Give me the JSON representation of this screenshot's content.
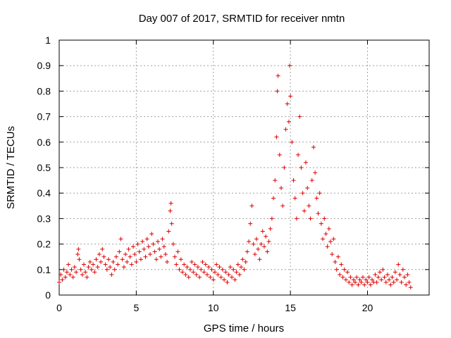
{
  "chart_data": {
    "type": "scatter",
    "title": "Day 007 of 2017, SRMTID for receiver nmtn",
    "xlabel": "GPS time / hours",
    "ylabel": "SRMTID / TECUs",
    "xlim": [
      0,
      24
    ],
    "ylim": [
      0,
      1
    ],
    "x_ticks": [
      0,
      5,
      10,
      15,
      20
    ],
    "x_tick_labels": [
      "0",
      "5",
      "10",
      "15",
      "20"
    ],
    "y_ticks": [
      0,
      0.1,
      0.2,
      0.3,
      0.4,
      0.5,
      0.6,
      0.7,
      0.8,
      0.9,
      1
    ],
    "y_tick_labels": [
      "0",
      "0.1",
      "0.2",
      "0.3",
      "0.4",
      "0.5",
      "0.6",
      "0.7",
      "0.8",
      "0.9",
      "1"
    ],
    "grid": true,
    "marker": "+",
    "color": "#e00000",
    "series": [
      {
        "name": "SRMTID",
        "points": [
          [
            0.0,
            0.05
          ],
          [
            0.1,
            0.08
          ],
          [
            0.2,
            0.06
          ],
          [
            0.3,
            0.1
          ],
          [
            0.4,
            0.07
          ],
          [
            0.5,
            0.09
          ],
          [
            0.6,
            0.12
          ],
          [
            0.7,
            0.08
          ],
          [
            0.8,
            0.1
          ],
          [
            0.9,
            0.07
          ],
          [
            1.0,
            0.11
          ],
          [
            1.1,
            0.09
          ],
          [
            1.2,
            0.16
          ],
          [
            1.25,
            0.18
          ],
          [
            1.3,
            0.14
          ],
          [
            1.4,
            0.1
          ],
          [
            1.5,
            0.08
          ],
          [
            1.6,
            0.12
          ],
          [
            1.7,
            0.09
          ],
          [
            1.8,
            0.07
          ],
          [
            1.9,
            0.11
          ],
          [
            2.0,
            0.13
          ],
          [
            2.1,
            0.1
          ],
          [
            2.2,
            0.12
          ],
          [
            2.3,
            0.09
          ],
          [
            2.4,
            0.14
          ],
          [
            2.5,
            0.11
          ],
          [
            2.6,
            0.16
          ],
          [
            2.7,
            0.13
          ],
          [
            2.8,
            0.18
          ],
          [
            2.9,
            0.15
          ],
          [
            3.0,
            0.12
          ],
          [
            3.1,
            0.1
          ],
          [
            3.2,
            0.14
          ],
          [
            3.3,
            0.11
          ],
          [
            3.4,
            0.08
          ],
          [
            3.5,
            0.13
          ],
          [
            3.6,
            0.1
          ],
          [
            3.7,
            0.15
          ],
          [
            3.8,
            0.12
          ],
          [
            3.9,
            0.17
          ],
          [
            4.0,
            0.22
          ],
          [
            4.1,
            0.14
          ],
          [
            4.2,
            0.11
          ],
          [
            4.3,
            0.16
          ],
          [
            4.4,
            0.13
          ],
          [
            4.5,
            0.18
          ],
          [
            4.6,
            0.15
          ],
          [
            4.7,
            0.12
          ],
          [
            4.8,
            0.19
          ],
          [
            4.9,
            0.16
          ],
          [
            5.0,
            0.13
          ],
          [
            5.1,
            0.2
          ],
          [
            5.2,
            0.17
          ],
          [
            5.3,
            0.14
          ],
          [
            5.4,
            0.21
          ],
          [
            5.5,
            0.18
          ],
          [
            5.6,
            0.15
          ],
          [
            5.7,
            0.22
          ],
          [
            5.8,
            0.19
          ],
          [
            5.9,
            0.16
          ],
          [
            6.0,
            0.24
          ],
          [
            6.1,
            0.2
          ],
          [
            6.2,
            0.17
          ],
          [
            6.3,
            0.14
          ],
          [
            6.4,
            0.21
          ],
          [
            6.5,
            0.18
          ],
          [
            6.6,
            0.15
          ],
          [
            6.7,
            0.22
          ],
          [
            6.8,
            0.19
          ],
          [
            6.9,
            0.16
          ],
          [
            7.0,
            0.13
          ],
          [
            7.1,
            0.25
          ],
          [
            7.2,
            0.33
          ],
          [
            7.25,
            0.36
          ],
          [
            7.3,
            0.28
          ],
          [
            7.4,
            0.2
          ],
          [
            7.5,
            0.15
          ],
          [
            7.6,
            0.12
          ],
          [
            7.7,
            0.17
          ],
          [
            7.8,
            0.1
          ],
          [
            7.9,
            0.14
          ],
          [
            8.0,
            0.09
          ],
          [
            8.1,
            0.12
          ],
          [
            8.2,
            0.08
          ],
          [
            8.3,
            0.11
          ],
          [
            8.4,
            0.07
          ],
          [
            8.5,
            0.1
          ],
          [
            8.6,
            0.13
          ],
          [
            8.7,
            0.09
          ],
          [
            8.8,
            0.12
          ],
          [
            8.9,
            0.08
          ],
          [
            9.0,
            0.11
          ],
          [
            9.1,
            0.07
          ],
          [
            9.2,
            0.1
          ],
          [
            9.3,
            0.13
          ],
          [
            9.4,
            0.09
          ],
          [
            9.5,
            0.12
          ],
          [
            9.6,
            0.08
          ],
          [
            9.7,
            0.11
          ],
          [
            9.8,
            0.07
          ],
          [
            9.9,
            0.1
          ],
          [
            10.0,
            0.06
          ],
          [
            10.1,
            0.09
          ],
          [
            10.2,
            0.12
          ],
          [
            10.3,
            0.08
          ],
          [
            10.4,
            0.11
          ],
          [
            10.5,
            0.07
          ],
          [
            10.6,
            0.1
          ],
          [
            10.7,
            0.06
          ],
          [
            10.8,
            0.09
          ],
          [
            10.9,
            0.05
          ],
          [
            11.0,
            0.08
          ],
          [
            11.1,
            0.11
          ],
          [
            11.2,
            0.07
          ],
          [
            11.3,
            0.1
          ],
          [
            11.4,
            0.06
          ],
          [
            11.5,
            0.09
          ],
          [
            11.6,
            0.12
          ],
          [
            11.7,
            0.08
          ],
          [
            11.8,
            0.11
          ],
          [
            11.9,
            0.14
          ],
          [
            12.0,
            0.1
          ],
          [
            12.1,
            0.13
          ],
          [
            12.2,
            0.17
          ],
          [
            12.3,
            0.21
          ],
          [
            12.4,
            0.28
          ],
          [
            12.5,
            0.35
          ],
          [
            12.6,
            0.2
          ],
          [
            12.7,
            0.16
          ],
          [
            12.8,
            0.22
          ],
          [
            12.9,
            0.18
          ],
          [
            13.0,
            0.14
          ],
          [
            13.1,
            0.2
          ],
          [
            13.2,
            0.25
          ],
          [
            13.3,
            0.19
          ],
          [
            13.4,
            0.23
          ],
          [
            13.5,
            0.17
          ],
          [
            13.6,
            0.21
          ],
          [
            13.7,
            0.26
          ],
          [
            13.8,
            0.3
          ],
          [
            13.9,
            0.38
          ],
          [
            14.0,
            0.45
          ],
          [
            14.1,
            0.62
          ],
          [
            14.15,
            0.8
          ],
          [
            14.2,
            0.86
          ],
          [
            14.3,
            0.55
          ],
          [
            14.4,
            0.42
          ],
          [
            14.5,
            0.35
          ],
          [
            14.6,
            0.5
          ],
          [
            14.7,
            0.65
          ],
          [
            14.8,
            0.75
          ],
          [
            14.9,
            0.68
          ],
          [
            14.95,
            0.9
          ],
          [
            15.0,
            0.78
          ],
          [
            15.1,
            0.6
          ],
          [
            15.2,
            0.45
          ],
          [
            15.3,
            0.38
          ],
          [
            15.4,
            0.3
          ],
          [
            15.5,
            0.55
          ],
          [
            15.6,
            0.7
          ],
          [
            15.7,
            0.5
          ],
          [
            15.8,
            0.4
          ],
          [
            15.9,
            0.33
          ],
          [
            16.0,
            0.52
          ],
          [
            16.1,
            0.42
          ],
          [
            16.2,
            0.35
          ],
          [
            16.3,
            0.3
          ],
          [
            16.4,
            0.45
          ],
          [
            16.5,
            0.58
          ],
          [
            16.6,
            0.48
          ],
          [
            16.7,
            0.38
          ],
          [
            16.8,
            0.32
          ],
          [
            16.9,
            0.4
          ],
          [
            17.0,
            0.28
          ],
          [
            17.1,
            0.22
          ],
          [
            17.2,
            0.3
          ],
          [
            17.3,
            0.24
          ],
          [
            17.4,
            0.19
          ],
          [
            17.5,
            0.26
          ],
          [
            17.6,
            0.21
          ],
          [
            17.7,
            0.16
          ],
          [
            17.8,
            0.22
          ],
          [
            17.9,
            0.13
          ],
          [
            18.0,
            0.1
          ],
          [
            18.1,
            0.15
          ],
          [
            18.2,
            0.08
          ],
          [
            18.3,
            0.12
          ],
          [
            18.4,
            0.07
          ],
          [
            18.5,
            0.1
          ],
          [
            18.6,
            0.06
          ],
          [
            18.7,
            0.09
          ],
          [
            18.8,
            0.05
          ],
          [
            18.9,
            0.07
          ],
          [
            19.0,
            0.04
          ],
          [
            19.1,
            0.06
          ],
          [
            19.2,
            0.05
          ],
          [
            19.3,
            0.07
          ],
          [
            19.4,
            0.04
          ],
          [
            19.5,
            0.06
          ],
          [
            19.6,
            0.05
          ],
          [
            19.7,
            0.07
          ],
          [
            19.8,
            0.04
          ],
          [
            19.9,
            0.06
          ],
          [
            20.0,
            0.05
          ],
          [
            20.1,
            0.07
          ],
          [
            20.2,
            0.04
          ],
          [
            20.3,
            0.06
          ],
          [
            20.4,
            0.05
          ],
          [
            20.5,
            0.08
          ],
          [
            20.6,
            0.05
          ],
          [
            20.7,
            0.07
          ],
          [
            20.8,
            0.09
          ],
          [
            20.9,
            0.06
          ],
          [
            21.0,
            0.1
          ],
          [
            21.1,
            0.07
          ],
          [
            21.2,
            0.05
          ],
          [
            21.3,
            0.08
          ],
          [
            21.4,
            0.06
          ],
          [
            21.5,
            0.04
          ],
          [
            21.6,
            0.07
          ],
          [
            21.7,
            0.05
          ],
          [
            21.8,
            0.09
          ],
          [
            21.9,
            0.06
          ],
          [
            22.0,
            0.12
          ],
          [
            22.1,
            0.08
          ],
          [
            22.2,
            0.05
          ],
          [
            22.3,
            0.1
          ],
          [
            22.4,
            0.07
          ],
          [
            22.5,
            0.04
          ],
          [
            22.6,
            0.08
          ],
          [
            22.7,
            0.05
          ],
          [
            22.8,
            0.03
          ]
        ]
      }
    ]
  }
}
